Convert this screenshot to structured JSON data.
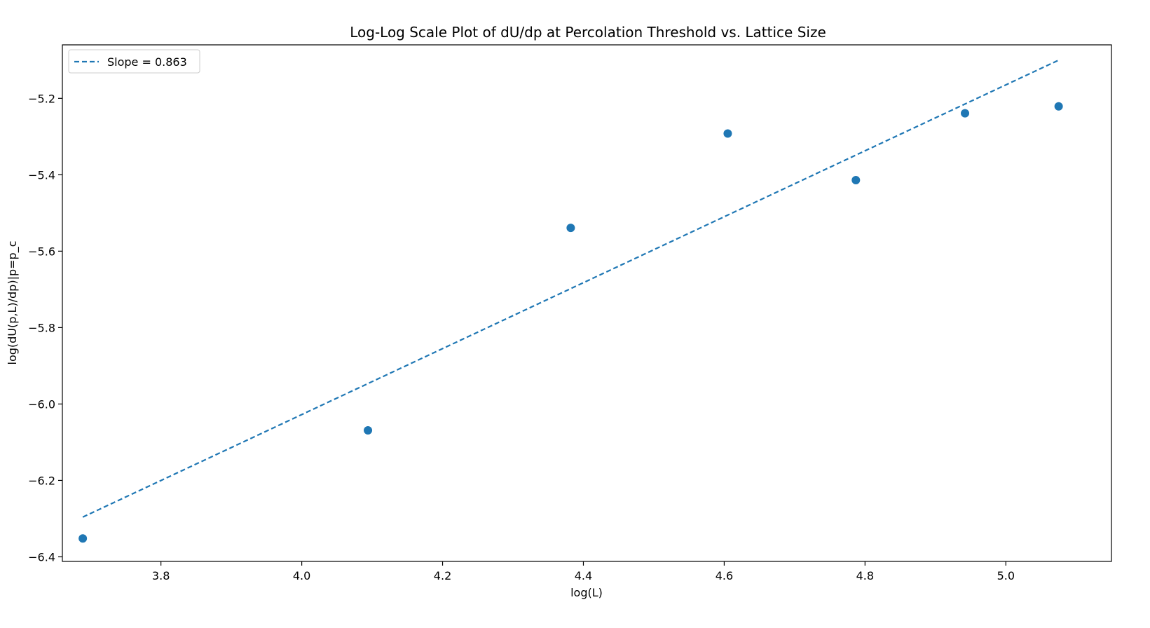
{
  "chart_data": {
    "type": "scatter",
    "title": "Log-Log Scale Plot of dU/dp at Percolation Threshold vs. Lattice Size",
    "xlabel": "log(L)",
    "ylabel": "log(dU(p,L)/dp)|p=p_c",
    "xlim": [
      3.66,
      5.15
    ],
    "ylim": [
      -6.412,
      -5.06
    ],
    "xticks": [
      3.8,
      4.0,
      4.2,
      4.4,
      4.6,
      4.8,
      5.0
    ],
    "xtick_labels": [
      "3.8",
      "4.0",
      "4.2",
      "4.4",
      "4.6",
      "4.8",
      "5.0"
    ],
    "yticks": [
      -5.2,
      -5.4,
      -5.6,
      -5.8,
      -6.0,
      -6.2,
      -6.4
    ],
    "ytick_labels": [
      "−5.2",
      "−5.4",
      "−5.6",
      "−5.8",
      "−6.0",
      "−6.2",
      "−6.4"
    ],
    "grid": false,
    "legend_position": "upper-left",
    "series": [
      {
        "kind": "scatter",
        "color": "#1f77b4",
        "x": [
          3.689,
          4.094,
          4.382,
          4.605,
          4.787,
          4.942,
          5.075
        ],
        "y": [
          -6.352,
          -6.069,
          -5.539,
          -5.292,
          -5.414,
          -5.239,
          -5.221
        ]
      },
      {
        "kind": "line",
        "name": "Slope = 0.863",
        "style": "dashed",
        "color": "#1f77b4",
        "x": [
          3.689,
          5.075
        ],
        "y": [
          -6.296,
          -5.1
        ]
      }
    ]
  }
}
